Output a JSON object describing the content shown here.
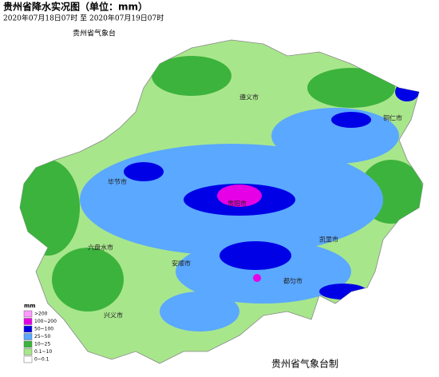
{
  "header": {
    "title": "贵州省降水实况图（单位：mm）",
    "period": "2020年07月18日07时  至  2020年07月19日07时",
    "issuer": "贵州省气象台"
  },
  "legend": {
    "title": "mm",
    "items": [
      {
        "label": ">200",
        "color": "#ff99ff"
      },
      {
        "label": "100~200",
        "color": "#e600e6"
      },
      {
        "label": "50~100",
        "color": "#0000e6"
      },
      {
        "label": "25~50",
        "color": "#5aa8ff"
      },
      {
        "label": "10~25",
        "color": "#3cb33c"
      },
      {
        "label": "0.1~10",
        "color": "#a8e68c"
      },
      {
        "label": "0~0.1",
        "color": "#ffffff"
      }
    ]
  },
  "places": [
    "遵义市",
    "铜仁市",
    "毕节市",
    "贵阳市",
    "凯里市",
    "都匀市",
    "安顺市",
    "六盘水市",
    "兴义市"
  ],
  "footer": "贵州省气象台制"
}
